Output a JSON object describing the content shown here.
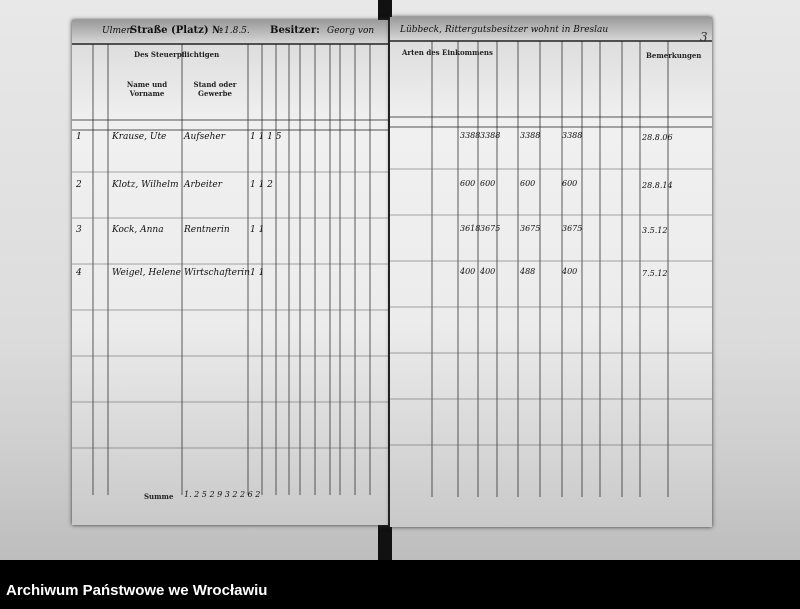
{
  "header": {
    "left_street_label": "Straße (Platz) №",
    "left_street_value": "Ulmen",
    "left_number_value": "1.8.5.",
    "owner_label": "Besitzer:",
    "owner_value": "Georg von",
    "right_owner_value": "Lübbeck, Rittergutsbesitzer wohnt in Breslau",
    "page_number": "3"
  },
  "columns": {
    "taxpayer_group": "Des Steuerpflichtigen",
    "name": "Name und Vorname",
    "occupation": "Stand oder Gewerbe",
    "income_group": "Arten des Einkommens",
    "remarks": "Bemerkungen"
  },
  "rows": [
    {
      "no": "1",
      "name": "Krause, Ute",
      "occupation": "Aufseher",
      "counts": "1 1 1 5",
      "amounts": [
        "3388",
        "3388",
        "3388",
        "3388"
      ],
      "note": "28.8.06"
    },
    {
      "no": "2",
      "name": "Klotz, Wilhelm",
      "occupation": "Arbeiter",
      "counts": "1 1 2",
      "amounts": [
        "600",
        "600",
        "600",
        "600"
      ],
      "note": "28.8.14"
    },
    {
      "no": "3",
      "name": "Kock, Anna",
      "occupation": "Rentnerin",
      "counts": "1 1",
      "amounts": [
        "3618",
        "3675",
        "3675",
        "3675"
      ],
      "note": "3.5.12"
    },
    {
      "no": "4",
      "name": "Weigel, Helene",
      "occupation": "Wirtschafterin",
      "counts": "1 1",
      "amounts": [
        "400",
        "400",
        "488",
        "400"
      ],
      "note": "7.5.12"
    }
  ],
  "totals": {
    "label": "Summe",
    "value": "1. 2 5 2 9   3 2 2 6 2"
  },
  "footer": {
    "archive": "Archiwum Państwowe we Wrocławiu"
  }
}
